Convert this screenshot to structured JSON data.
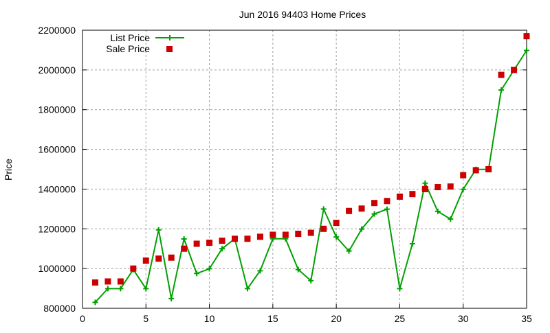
{
  "chart_data": {
    "type": "line",
    "title": "Jun 2016 94403 Home Prices",
    "xlabel": "",
    "ylabel": "Price",
    "xlim": [
      0,
      35
    ],
    "ylim": [
      800000,
      2200000
    ],
    "xticks": [
      0,
      5,
      10,
      15,
      20,
      25,
      30,
      35
    ],
    "yticks": [
      800000,
      1000000,
      1200000,
      1400000,
      1600000,
      1800000,
      2000000,
      2200000
    ],
    "grid": true,
    "legend_position": "top-left",
    "x": [
      1,
      2,
      3,
      4,
      5,
      6,
      7,
      8,
      9,
      10,
      11,
      12,
      13,
      14,
      15,
      16,
      17,
      18,
      19,
      20,
      21,
      22,
      23,
      24,
      25,
      26,
      27,
      28,
      29,
      30,
      31,
      32,
      33,
      34,
      35
    ],
    "series": [
      {
        "name": "List Price",
        "style": "linespoints",
        "color": "#00a000",
        "values": [
          830000,
          899000,
          899000,
          995000,
          899000,
          1195000,
          849000,
          1149000,
          975000,
          999000,
          1100000,
          1150000,
          899000,
          989000,
          1150000,
          1150000,
          995000,
          939000,
          1300000,
          1159000,
          1088000,
          1199000,
          1275000,
          1299000,
          899000,
          1125000,
          1430000,
          1288000,
          1249000,
          1399000,
          1499000,
          1499000,
          1899000,
          1999000,
          2098000
        ]
      },
      {
        "name": "Sale Price",
        "style": "points",
        "color": "#cc0000",
        "values": [
          930000,
          935000,
          935000,
          1000000,
          1040000,
          1050000,
          1055000,
          1100000,
          1125000,
          1130000,
          1140000,
          1150000,
          1150000,
          1160000,
          1170000,
          1170000,
          1175000,
          1180000,
          1200000,
          1230000,
          1290000,
          1302000,
          1330000,
          1340000,
          1362000,
          1375000,
          1400000,
          1410000,
          1413000,
          1470000,
          1495000,
          1500000,
          1975000,
          2000000,
          2170000
        ]
      }
    ]
  }
}
